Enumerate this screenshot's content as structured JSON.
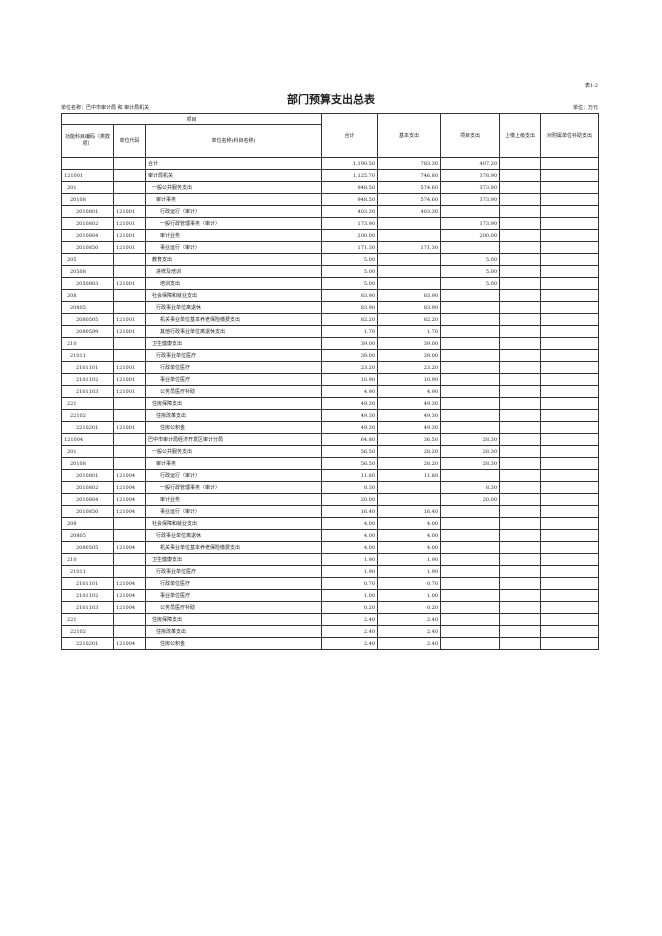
{
  "table_no": "表1-2",
  "title": "部门预算支出总表",
  "unit_name": "单位名称：巴中市审计局 和 审计局机关",
  "unit": "单位：万元",
  "headers": {
    "group": "项目",
    "code": "功能科目编码（类款项）",
    "unit_code": "单位代码",
    "name": "单位名称(科目名称)",
    "total": "合计",
    "basic": "基本支出",
    "project": "项目支出",
    "upper": "上缴上级支出",
    "subsidy": "对附属单位补助支出"
  },
  "rows": [
    {
      "code": "",
      "unit": "",
      "name": "合计",
      "level": 0,
      "total": "1,190.50",
      "basic": "783.30",
      "project": "407.20"
    },
    {
      "code": "121001",
      "unit": "",
      "name": "审计局机关",
      "level": 0,
      "total": "1,125.70",
      "basic": "746.80",
      "project": "378.90"
    },
    {
      "code": "201",
      "unit": "",
      "name": "一般公共服务支出",
      "level": 1,
      "total": "948.50",
      "basic": "574.60",
      "project": "373.90"
    },
    {
      "code": "20108",
      "unit": "",
      "name": "审计事务",
      "level": 2,
      "total": "948.50",
      "basic": "574.60",
      "project": "373.90"
    },
    {
      "code": "2010801",
      "unit": "121001",
      "name": "行政运行（审计）",
      "level": 3,
      "total": "403.30",
      "basic": "403.30",
      "project": ""
    },
    {
      "code": "2010802",
      "unit": "121001",
      "name": "一般行政管理事务（审计）",
      "level": 3,
      "total": "173.90",
      "basic": "",
      "project": "173.90"
    },
    {
      "code": "2010804",
      "unit": "121001",
      "name": "审计业务",
      "level": 3,
      "total": "200.00",
      "basic": "",
      "project": "200.00"
    },
    {
      "code": "2010850",
      "unit": "121001",
      "name": "事业运行（审计）",
      "level": 3,
      "total": "171.30",
      "basic": "171.30",
      "project": ""
    },
    {
      "code": "205",
      "unit": "",
      "name": "教育支出",
      "level": 1,
      "total": "5.00",
      "basic": "",
      "project": "5.00"
    },
    {
      "code": "20508",
      "unit": "",
      "name": "进修及培训",
      "level": 2,
      "total": "5.00",
      "basic": "",
      "project": "5.00"
    },
    {
      "code": "2050803",
      "unit": "121001",
      "name": "培训支出",
      "level": 3,
      "total": "5.00",
      "basic": "",
      "project": "5.00"
    },
    {
      "code": "208",
      "unit": "",
      "name": "社会保障和就业支出",
      "level": 1,
      "total": "83.90",
      "basic": "83.90",
      "project": ""
    },
    {
      "code": "20805",
      "unit": "",
      "name": "行政事业单位离退休",
      "level": 2,
      "total": "83.90",
      "basic": "83.90",
      "project": ""
    },
    {
      "code": "2080505",
      "unit": "121001",
      "name": "机关事业单位基本养老保险缴费支出",
      "level": 3,
      "total": "82.20",
      "basic": "82.20",
      "project": ""
    },
    {
      "code": "2080599",
      "unit": "121001",
      "name": "其他行政事业单位离退休支出",
      "level": 3,
      "total": "1.70",
      "basic": "1.70",
      "project": ""
    },
    {
      "code": "210",
      "unit": "",
      "name": "卫生健康支出",
      "level": 1,
      "total": "39.00",
      "basic": "39.00",
      "project": ""
    },
    {
      "code": "21011",
      "unit": "",
      "name": "行政事业单位医疗",
      "level": 2,
      "total": "39.00",
      "basic": "39.00",
      "project": ""
    },
    {
      "code": "2101101",
      "unit": "121001",
      "name": "行政单位医疗",
      "level": 3,
      "total": "23.20",
      "basic": "23.20",
      "project": ""
    },
    {
      "code": "2101102",
      "unit": "121001",
      "name": "事业单位医疗",
      "level": 3,
      "total": "10.90",
      "basic": "10.90",
      "project": ""
    },
    {
      "code": "2101103",
      "unit": "121001",
      "name": "公务员医疗补助",
      "level": 3,
      "total": "4.90",
      "basic": "4.90",
      "project": ""
    },
    {
      "code": "221",
      "unit": "",
      "name": "住房保障支出",
      "level": 1,
      "total": "49.30",
      "basic": "49.30",
      "project": ""
    },
    {
      "code": "22102",
      "unit": "",
      "name": "住房改革支出",
      "level": 2,
      "total": "49.30",
      "basic": "49.30",
      "project": ""
    },
    {
      "code": "2210201",
      "unit": "121001",
      "name": "住房公积金",
      "level": 3,
      "total": "49.30",
      "basic": "49.30",
      "project": ""
    },
    {
      "code": "121004",
      "unit": "",
      "name": "巴中市审计局经济开发区审计分局",
      "level": 0,
      "total": "64.80",
      "basic": "36.50",
      "project": "28.30"
    },
    {
      "code": "201",
      "unit": "",
      "name": "一般公共服务支出",
      "level": 1,
      "total": "56.50",
      "basic": "28.20",
      "project": "28.30"
    },
    {
      "code": "20108",
      "unit": "",
      "name": "审计事务",
      "level": 2,
      "total": "56.50",
      "basic": "28.20",
      "project": "28.30"
    },
    {
      "code": "2010801",
      "unit": "121004",
      "name": "行政运行（审计）",
      "level": 3,
      "total": "11.80",
      "basic": "11.80",
      "project": ""
    },
    {
      "code": "2010802",
      "unit": "121004",
      "name": "一般行政管理事务（审计）",
      "level": 3,
      "total": "8.30",
      "basic": "",
      "project": "8.30"
    },
    {
      "code": "2010804",
      "unit": "121004",
      "name": "审计业务",
      "level": 3,
      "total": "20.00",
      "basic": "",
      "project": "20.00"
    },
    {
      "code": "2010850",
      "unit": "121004",
      "name": "事业运行（审计）",
      "level": 3,
      "total": "16.40",
      "basic": "16.40",
      "project": ""
    },
    {
      "code": "208",
      "unit": "",
      "name": "社会保障和就业支出",
      "level": 1,
      "total": "4.00",
      "basic": "4.00",
      "project": ""
    },
    {
      "code": "20805",
      "unit": "",
      "name": "行政事业单位离退休",
      "level": 2,
      "total": "4.00",
      "basic": "4.00",
      "project": ""
    },
    {
      "code": "2080505",
      "unit": "121004",
      "name": "机关事业单位基本养老保险缴费支出",
      "level": 3,
      "total": "4.00",
      "basic": "4.00",
      "project": ""
    },
    {
      "code": "210",
      "unit": "",
      "name": "卫生健康支出",
      "level": 1,
      "total": "1.90",
      "basic": "1.90",
      "project": ""
    },
    {
      "code": "21011",
      "unit": "",
      "name": "行政事业单位医疗",
      "level": 2,
      "total": "1.90",
      "basic": "1.90",
      "project": ""
    },
    {
      "code": "2101101",
      "unit": "121004",
      "name": "行政单位医疗",
      "level": 3,
      "total": "0.70",
      "basic": "0.70",
      "project": ""
    },
    {
      "code": "2101102",
      "unit": "121004",
      "name": "事业单位医疗",
      "level": 3,
      "total": "1.00",
      "basic": "1.00",
      "project": ""
    },
    {
      "code": "2101103",
      "unit": "121004",
      "name": "公务员医疗补助",
      "level": 3,
      "total": "0.20",
      "basic": "0.20",
      "project": ""
    },
    {
      "code": "221",
      "unit": "",
      "name": "住房保障支出",
      "level": 1,
      "total": "2.40",
      "basic": "2.40",
      "project": ""
    },
    {
      "code": "22102",
      "unit": "",
      "name": "住房改革支出",
      "level": 2,
      "total": "2.40",
      "basic": "2.40",
      "project": ""
    },
    {
      "code": "2210201",
      "unit": "121004",
      "name": "住房公积金",
      "level": 3,
      "total": "2.40",
      "basic": "2.40",
      "project": ""
    }
  ]
}
